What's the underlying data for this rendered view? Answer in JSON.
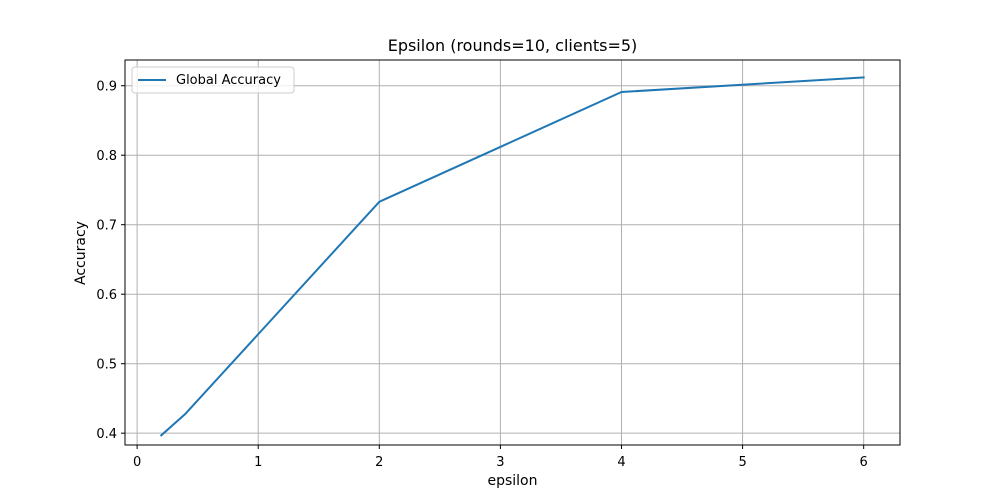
{
  "chart_data": {
    "type": "line",
    "title": "Epsilon (rounds=10, clients=5)",
    "xlabel": "epsilon",
    "ylabel": "Accuracy",
    "xlim": [
      -0.1,
      6.3
    ],
    "ylim": [
      0.383,
      0.937
    ],
    "xticks": [
      0,
      1,
      2,
      3,
      4,
      5,
      6
    ],
    "yticks": [
      0.4,
      0.5,
      0.6,
      0.7,
      0.8,
      0.9
    ],
    "xtick_labels": [
      "0",
      "1",
      "2",
      "3",
      "4",
      "5",
      "6"
    ],
    "ytick_labels": [
      "0.4",
      "0.5",
      "0.6",
      "0.7",
      "0.8",
      "0.9"
    ],
    "grid": true,
    "legend_position": "top-left",
    "series": [
      {
        "name": "Global Accuracy",
        "color": "#1f77b4",
        "x": [
          0.2,
          0.4,
          2,
          4,
          6
        ],
        "y": [
          0.397,
          0.428,
          0.733,
          0.891,
          0.912
        ]
      }
    ]
  }
}
